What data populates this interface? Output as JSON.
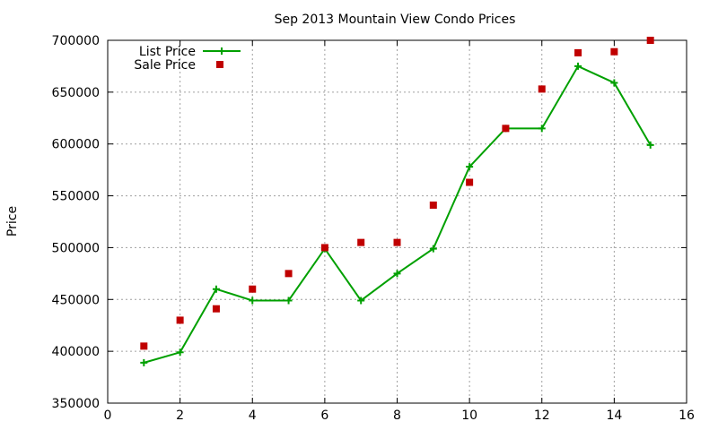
{
  "chart_data": {
    "type": "line",
    "title": "Sep 2013 Mountain View Condo Prices",
    "xlabel": "",
    "ylabel": "Price",
    "xlim": [
      0,
      16
    ],
    "ylim": [
      350000,
      700000
    ],
    "xticks": [
      "0",
      "2",
      "4",
      "6",
      "8",
      "10",
      "12",
      "14",
      "16"
    ],
    "yticks": [
      "350000",
      "400000",
      "450000",
      "500000",
      "550000",
      "600000",
      "650000",
      "700000"
    ],
    "grid": true,
    "legend_position": "top-left",
    "series": [
      {
        "name": "List Price",
        "style": "linespoints",
        "color": "#00a000",
        "x": [
          1,
          2,
          3,
          4,
          5,
          6,
          7,
          8,
          9,
          10,
          11,
          12,
          13,
          14,
          15
        ],
        "y": [
          389000,
          399000,
          460000,
          449000,
          449000,
          499000,
          449000,
          475000,
          499000,
          578000,
          615000,
          615000,
          675000,
          659000,
          599000
        ]
      },
      {
        "name": "Sale Price",
        "style": "points",
        "color": "#c00000",
        "x": [
          1,
          2,
          3,
          4,
          5,
          6,
          7,
          8,
          9,
          10,
          11,
          12,
          13,
          14,
          15
        ],
        "y": [
          405000,
          430000,
          441000,
          460000,
          475000,
          500000,
          505000,
          505000,
          541000,
          563000,
          615000,
          653000,
          688000,
          689000,
          700000
        ]
      }
    ]
  }
}
